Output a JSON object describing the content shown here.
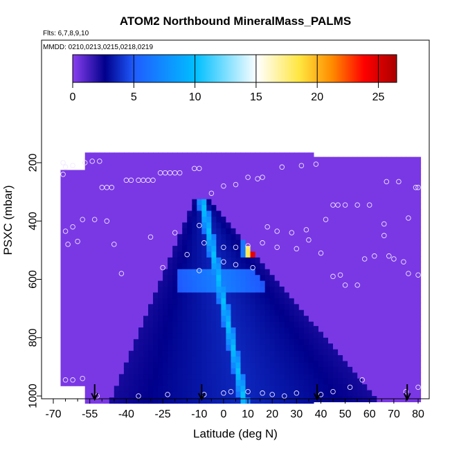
{
  "chart_data": {
    "type": "heatmap",
    "title": "ATOM2 Northbound MineralMass_PALMS",
    "subtitle_flights": "Flts: 6,7,8,9,10",
    "subtitle_dates": "MMDD: 0210,0213,0215,0218,0219",
    "xlabel": "Latitude (deg N)",
    "ylabel": "PSXC (mbar)",
    "xlim": [
      -70,
      82
    ],
    "ylim": [
      1010,
      100
    ],
    "x_ticks": [
      -70,
      -55,
      -40,
      -25,
      -10,
      0,
      10,
      20,
      30,
      40,
      50,
      60,
      70,
      80
    ],
    "x_tick_labels": [
      "-70",
      "-55",
      "-40",
      "-25",
      "-10",
      "0",
      "10",
      "20",
      "30",
      "40",
      "50",
      "60",
      "70",
      "80"
    ],
    "y_ticks": [
      200,
      400,
      600,
      800,
      1000
    ],
    "y_tick_labels": [
      "200",
      "400",
      "600",
      "800",
      "1000"
    ],
    "colorbar": {
      "range": [
        0,
        26.5
      ],
      "ticks": [
        0,
        5,
        10,
        15,
        20,
        25
      ],
      "tick_labels": [
        "0",
        "5",
        "10",
        "15",
        "20",
        "25"
      ],
      "colors": [
        "#8a3ff0",
        "#00008b",
        "#1f5cff",
        "#00bfff",
        "#ffffff",
        "#ffe640",
        "#ff8c00",
        "#ff0000",
        "#aa0000"
      ]
    },
    "background_value": 0.3,
    "domain_bounds": [
      {
        "x0": -67,
        "x1": -57,
        "p0": 225,
        "p1": 960
      },
      {
        "x0": -57,
        "x1": 37,
        "p0": 165,
        "p1": 1010
      },
      {
        "x0": 37,
        "x1": 63,
        "p0": 180,
        "p1": 1010
      },
      {
        "x0": 63,
        "x1": 80,
        "p0": 180,
        "p1": 1010
      }
    ],
    "plume": {
      "shape": "triangle",
      "apex_lat": 8,
      "apex_p": 320,
      "base_p": 1010,
      "base_lat_min": -40,
      "base_lat_max": 70,
      "peak_core": {
        "lat_min": 8,
        "lat_max": 19,
        "p_min": 470,
        "p_max": 520,
        "value": 26
      },
      "spine": {
        "lat_at_600": -2,
        "lat_at_1000": 8,
        "value": 11
      }
    },
    "sample_points": [
      [
        -66,
        200
      ],
      [
        -65,
        215
      ],
      [
        -62,
        210
      ],
      [
        -57,
        200
      ],
      [
        -54,
        195
      ],
      [
        -51,
        195
      ],
      [
        -66,
        240
      ],
      [
        -50,
        285
      ],
      [
        -48,
        285
      ],
      [
        -46,
        285
      ],
      [
        -40,
        260
      ],
      [
        -38,
        260
      ],
      [
        -35,
        260
      ],
      [
        -33,
        260
      ],
      [
        -31,
        260
      ],
      [
        -29,
        260
      ],
      [
        -26,
        235
      ],
      [
        -24,
        235
      ],
      [
        -22,
        235
      ],
      [
        -20,
        235
      ],
      [
        -18,
        235
      ],
      [
        -12,
        220
      ],
      [
        -10,
        220
      ],
      [
        -5,
        305
      ],
      [
        0,
        280
      ],
      [
        5,
        275
      ],
      [
        10,
        250
      ],
      [
        14,
        255
      ],
      [
        16,
        250
      ],
      [
        24,
        215
      ],
      [
        32,
        210
      ],
      [
        38,
        205
      ],
      [
        -65,
        435
      ],
      [
        -62,
        420
      ],
      [
        -58,
        395
      ],
      [
        -53,
        395
      ],
      [
        -48,
        400
      ],
      [
        -30,
        455
      ],
      [
        -20,
        440
      ],
      [
        -10,
        415
      ],
      [
        18,
        420
      ],
      [
        22,
        435
      ],
      [
        28,
        440
      ],
      [
        34,
        430
      ],
      [
        42,
        395
      ],
      [
        45,
        345
      ],
      [
        47,
        345
      ],
      [
        50,
        345
      ],
      [
        55,
        345
      ],
      [
        60,
        345
      ],
      [
        67,
        265
      ],
      [
        72,
        265
      ],
      [
        79,
        285
      ],
      [
        80,
        285
      ],
      [
        76,
        390
      ],
      [
        66,
        410
      ],
      [
        66,
        450
      ],
      [
        -64,
        480
      ],
      [
        -60,
        470
      ],
      [
        -45,
        480
      ],
      [
        -15,
        515
      ],
      [
        -8,
        475
      ],
      [
        0,
        490
      ],
      [
        5,
        490
      ],
      [
        10,
        485
      ],
      [
        16,
        475
      ],
      [
        22,
        490
      ],
      [
        30,
        495
      ],
      [
        35,
        465
      ],
      [
        40,
        510
      ],
      [
        45,
        590
      ],
      [
        48,
        585
      ],
      [
        50,
        620
      ],
      [
        55,
        620
      ],
      [
        58,
        530
      ],
      [
        62,
        520
      ],
      [
        68,
        520
      ],
      [
        70,
        530
      ],
      [
        74,
        540
      ],
      [
        76,
        580
      ],
      [
        80,
        585
      ],
      [
        -42,
        580
      ],
      [
        -25,
        560
      ],
      [
        -10,
        570
      ],
      [
        0,
        540
      ],
      [
        5,
        550
      ],
      [
        12,
        560
      ],
      [
        -65,
        945
      ],
      [
        -62,
        945
      ],
      [
        -58,
        940
      ],
      [
        -52,
        1000
      ],
      [
        -35,
        1000
      ],
      [
        -23,
        995
      ],
      [
        -8,
        995
      ],
      [
        0,
        990
      ],
      [
        3,
        985
      ],
      [
        10,
        985
      ],
      [
        16,
        990
      ],
      [
        20,
        995
      ],
      [
        25,
        1000
      ],
      [
        30,
        990
      ],
      [
        40,
        995
      ],
      [
        45,
        985
      ],
      [
        52,
        970
      ],
      [
        57,
        945
      ],
      [
        75,
        985
      ],
      [
        80,
        970
      ]
    ],
    "arrows_lat": [
      -53,
      -9,
      38.5,
      75.5
    ]
  }
}
